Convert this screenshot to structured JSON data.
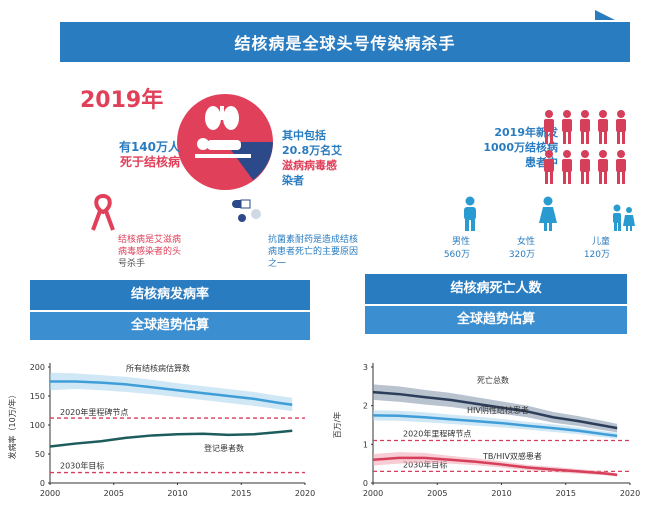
{
  "header": {
    "title": "结核病是全球头号传染病杀手"
  },
  "year": "2019年",
  "left": {
    "deaths_line1": "有140万人",
    "deaths_line2": "死于结核病",
    "hiv_line1": "其中包括",
    "hiv_line2": "20.8万名艾",
    "hiv_line3": "滋病病毒感",
    "hiv_line4": "染者",
    "ribbon_caption_1": "结核病是艾滋病",
    "ribbon_caption_2": "病毒感染者的头",
    "ribbon_caption_3": "号杀手",
    "drug_caption_1": "抗菌素耐药是造成结核",
    "drug_caption_2": "病患者死亡的主要原因",
    "drug_caption_3": "之一"
  },
  "right": {
    "new_line1": "2019年新发",
    "new_line2": "1000万结核病",
    "new_line3": "患者中",
    "male_label": "男性",
    "male_value": "560万",
    "female_label": "女性",
    "female_value": "320万",
    "child_label": "儿童",
    "child_value": "120万"
  },
  "bands": {
    "left_title": "结核病发病率",
    "left_sub": "全球趋势估算",
    "right_title": "结核病死亡人数",
    "right_sub": "全球趋势估算"
  },
  "colors": {
    "accent_red": "#e0405a",
    "accent_blue": "#2a7cc0",
    "teal": "#1d5c5c",
    "navy": "#2c3e5a"
  },
  "chart_data": [
    {
      "type": "line",
      "ylabel": "发病率（10万/年）",
      "xlim": [
        2000,
        2020
      ],
      "ylim": [
        0,
        200
      ],
      "xticks": [
        2000,
        2005,
        2010,
        2015,
        2020
      ],
      "yticks": [
        0,
        50,
        100,
        150,
        200
      ],
      "series": [
        {
          "name": "所有结核病估算数",
          "x": [
            2000,
            2002,
            2004,
            2006,
            2008,
            2010,
            2012,
            2014,
            2016,
            2018,
            2019
          ],
          "values": [
            175,
            175,
            173,
            170,
            165,
            160,
            155,
            150,
            145,
            138,
            135
          ],
          "lower": [
            160,
            162,
            160,
            157,
            153,
            148,
            143,
            138,
            133,
            127,
            124
          ],
          "upper": [
            190,
            189,
            186,
            183,
            178,
            172,
            167,
            162,
            157,
            150,
            147
          ]
        },
        {
          "name": "登记患者数",
          "x": [
            2000,
            2002,
            2004,
            2006,
            2008,
            2010,
            2012,
            2014,
            2016,
            2018,
            2019
          ],
          "values": [
            63,
            68,
            72,
            78,
            82,
            84,
            85,
            83,
            84,
            88,
            90
          ]
        }
      ],
      "reference_lines": [
        {
          "name": "2020年里程碑节点",
          "value": 112
        },
        {
          "name": "2030年目标",
          "value": 18
        }
      ]
    },
    {
      "type": "line",
      "ylabel": "百万/年",
      "xlim": [
        2000,
        2020
      ],
      "ylim": [
        0,
        3
      ],
      "xticks": [
        2000,
        2005,
        2010,
        2015,
        2020
      ],
      "yticks": [
        0,
        1,
        2,
        3
      ],
      "series": [
        {
          "name": "死亡总数",
          "x": [
            2000,
            2002,
            2004,
            2006,
            2008,
            2010,
            2012,
            2014,
            2016,
            2018,
            2019
          ],
          "values": [
            2.35,
            2.3,
            2.22,
            2.15,
            2.05,
            1.95,
            1.85,
            1.7,
            1.6,
            1.48,
            1.42
          ],
          "lower": [
            2.15,
            2.1,
            2.03,
            1.97,
            1.88,
            1.79,
            1.7,
            1.56,
            1.47,
            1.36,
            1.31
          ],
          "upper": [
            2.55,
            2.5,
            2.41,
            2.33,
            2.22,
            2.11,
            2.0,
            1.84,
            1.73,
            1.6,
            1.53
          ]
        },
        {
          "name": "HIV阴性结核患者",
          "x": [
            2000,
            2002,
            2004,
            2006,
            2008,
            2010,
            2012,
            2014,
            2016,
            2018,
            2019
          ],
          "values": [
            1.75,
            1.74,
            1.7,
            1.65,
            1.6,
            1.55,
            1.48,
            1.42,
            1.35,
            1.26,
            1.22
          ],
          "lower": [
            1.62,
            1.61,
            1.57,
            1.53,
            1.48,
            1.44,
            1.38,
            1.32,
            1.26,
            1.18,
            1.14
          ],
          "upper": [
            1.88,
            1.87,
            1.83,
            1.77,
            1.72,
            1.66,
            1.58,
            1.52,
            1.44,
            1.34,
            1.3
          ]
        },
        {
          "name": "TB/HIV双感患者",
          "x": [
            2000,
            2002,
            2004,
            2006,
            2008,
            2010,
            2012,
            2014,
            2016,
            2018,
            2019
          ],
          "values": [
            0.6,
            0.65,
            0.65,
            0.6,
            0.55,
            0.48,
            0.4,
            0.35,
            0.3,
            0.25,
            0.21
          ],
          "lower": [
            0.45,
            0.5,
            0.52,
            0.5,
            0.46,
            0.4,
            0.33,
            0.28,
            0.24,
            0.2,
            0.17
          ],
          "upper": [
            0.75,
            0.8,
            0.78,
            0.7,
            0.64,
            0.56,
            0.47,
            0.42,
            0.36,
            0.3,
            0.25
          ]
        }
      ],
      "reference_lines": [
        {
          "name": "2020年里程碑节点",
          "value": 1.1
        },
        {
          "name": "2030年目标",
          "value": 0.3
        }
      ]
    }
  ]
}
